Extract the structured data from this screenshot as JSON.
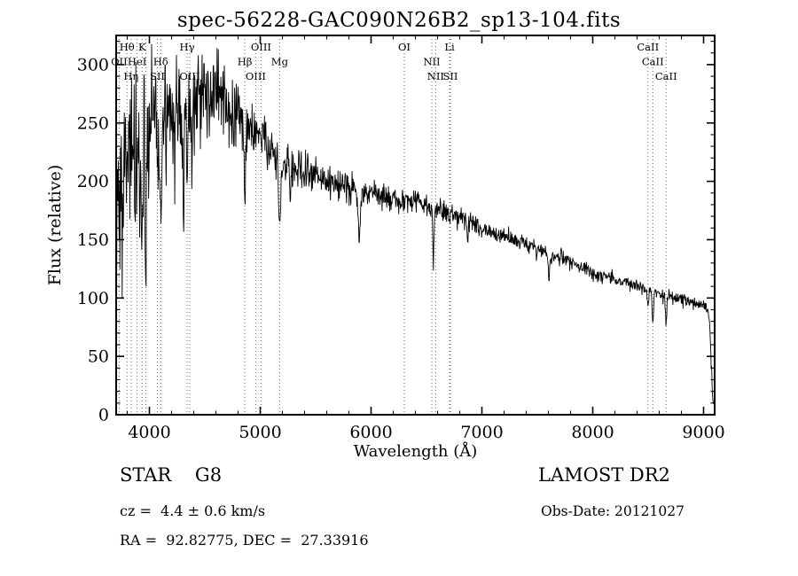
{
  "chart_data": {
    "type": "line",
    "title": "spec-56228-GAC090N26B2_sp13-104.fits",
    "xlabel": "Wavelength (Å)",
    "ylabel": "Flux (relative)",
    "xlim": [
      3700,
      9100
    ],
    "ylim": [
      0,
      325
    ],
    "xticks": [
      4000,
      5000,
      6000,
      7000,
      8000,
      9000
    ],
    "yticks": [
      0,
      50,
      100,
      150,
      200,
      250,
      300
    ],
    "x_minor_step": 200,
    "y_minor_step": 10,
    "grid": false,
    "legend": "none",
    "line_color": "#000000",
    "marker_line_color": "#666666",
    "noise_seed": 56228,
    "continuum": [
      [
        3700,
        160
      ],
      [
        3730,
        185
      ],
      [
        3760,
        200
      ],
      [
        3800,
        215
      ],
      [
        3850,
        220
      ],
      [
        3900,
        235
      ],
      [
        3950,
        230
      ],
      [
        4000,
        250
      ],
      [
        4050,
        245
      ],
      [
        4100,
        240
      ],
      [
        4150,
        258
      ],
      [
        4200,
        262
      ],
      [
        4250,
        255
      ],
      [
        4300,
        258
      ],
      [
        4350,
        250
      ],
      [
        4400,
        262
      ],
      [
        4450,
        268
      ],
      [
        4500,
        272
      ],
      [
        4550,
        276
      ],
      [
        4600,
        280
      ],
      [
        4650,
        276
      ],
      [
        4700,
        272
      ],
      [
        4750,
        264
      ],
      [
        4800,
        256
      ],
      [
        4860,
        244
      ],
      [
        4900,
        246
      ],
      [
        4950,
        242
      ],
      [
        5000,
        236
      ],
      [
        5050,
        230
      ],
      [
        5100,
        224
      ],
      [
        5150,
        218
      ],
      [
        5200,
        212
      ],
      [
        5250,
        214
      ],
      [
        5300,
        212
      ],
      [
        5350,
        210
      ],
      [
        5400,
        209
      ],
      [
        5450,
        207
      ],
      [
        5500,
        205
      ],
      [
        5600,
        201
      ],
      [
        5700,
        198
      ],
      [
        5800,
        195
      ],
      [
        5900,
        189
      ],
      [
        6000,
        191
      ],
      [
        6100,
        188
      ],
      [
        6200,
        186
      ],
      [
        6300,
        184
      ],
      [
        6400,
        182
      ],
      [
        6500,
        179
      ],
      [
        6600,
        176
      ],
      [
        6700,
        173
      ],
      [
        6800,
        169
      ],
      [
        6900,
        164
      ],
      [
        7000,
        160
      ],
      [
        7100,
        156
      ],
      [
        7200,
        152
      ],
      [
        7300,
        149
      ],
      [
        7400,
        146
      ],
      [
        7500,
        142
      ],
      [
        7600,
        138
      ],
      [
        7700,
        134
      ],
      [
        7800,
        130
      ],
      [
        7900,
        126
      ],
      [
        8000,
        122
      ],
      [
        8100,
        119
      ],
      [
        8200,
        116
      ],
      [
        8300,
        113
      ],
      [
        8400,
        110
      ],
      [
        8500,
        107
      ],
      [
        8600,
        104
      ],
      [
        8700,
        101
      ],
      [
        8800,
        99
      ],
      [
        8900,
        96
      ],
      [
        9000,
        93
      ],
      [
        9040,
        90
      ],
      [
        9060,
        70
      ],
      [
        9080,
        15
      ],
      [
        9100,
        5
      ]
    ],
    "noise_sigma": [
      [
        3700,
        40
      ],
      [
        3900,
        34
      ],
      [
        4200,
        26
      ],
      [
        4500,
        22
      ],
      [
        4800,
        16
      ],
      [
        5000,
        11
      ],
      [
        5200,
        10
      ],
      [
        5500,
        8
      ],
      [
        5800,
        7
      ],
      [
        6000,
        6
      ],
      [
        6300,
        5.5
      ],
      [
        6600,
        5
      ],
      [
        7000,
        4
      ],
      [
        7500,
        3.5
      ],
      [
        8000,
        3
      ],
      [
        8600,
        3
      ],
      [
        9100,
        3
      ]
    ],
    "absorption_lines": [
      {
        "wl": 3934,
        "depth": 95,
        "width": 7
      },
      {
        "wl": 3968,
        "depth": 85,
        "width": 7
      },
      {
        "wl": 4102,
        "depth": 65,
        "width": 6
      },
      {
        "wl": 4226,
        "depth": 50,
        "width": 5
      },
      {
        "wl": 4305,
        "depth": 55,
        "width": 7
      },
      {
        "wl": 4340,
        "depth": 55,
        "width": 5
      },
      {
        "wl": 4383,
        "depth": 45,
        "width": 5
      },
      {
        "wl": 4861,
        "depth": 55,
        "width": 6
      },
      {
        "wl": 5175,
        "depth": 60,
        "width": 8
      },
      {
        "wl": 5270,
        "depth": 40,
        "width": 6
      },
      {
        "wl": 5893,
        "depth": 45,
        "width": 7
      },
      {
        "wl": 6563,
        "depth": 45,
        "width": 6
      },
      {
        "wl": 6870,
        "depth": 14,
        "width": 6
      },
      {
        "wl": 7605,
        "depth": 18,
        "width": 8
      },
      {
        "wl": 8498,
        "depth": 18,
        "width": 5
      },
      {
        "wl": 8542,
        "depth": 26,
        "width": 6
      },
      {
        "wl": 8662,
        "depth": 24,
        "width": 6
      }
    ],
    "line_markers": [
      {
        "label": "Hθ",
        "wl": 3798,
        "row": 1
      },
      {
        "label": "K",
        "wl": 3934,
        "row": 1
      },
      {
        "label": "",
        "wl": 3968,
        "row": 1
      },
      {
        "label": "Hγ",
        "wl": 4340,
        "row": 1
      },
      {
        "label": "OIII",
        "wl": 5007,
        "row": 1
      },
      {
        "label": "OI",
        "wl": 6300,
        "row": 1
      },
      {
        "label": "Li",
        "wl": 6708,
        "row": 1
      },
      {
        "label": "CaII",
        "wl": 8498,
        "row": 1
      },
      {
        "label": "OII",
        "wl": 3727,
        "row": 2
      },
      {
        "label": "HeI",
        "wl": 3889,
        "row": 2
      },
      {
        "label": "Hδ",
        "wl": 4102,
        "row": 2
      },
      {
        "label": "Hβ",
        "wl": 4861,
        "row": 2
      },
      {
        "label": "Mg",
        "wl": 5175,
        "row": 2
      },
      {
        "label": "NII",
        "wl": 6548,
        "row": 2
      },
      {
        "label": "CaII",
        "wl": 8542,
        "row": 2
      },
      {
        "label": "Hη",
        "wl": 3835,
        "row": 3
      },
      {
        "label": "SII",
        "wl": 4072,
        "row": 3
      },
      {
        "label": "OIII",
        "wl": 4363,
        "row": 3
      },
      {
        "label": "OIII",
        "wl": 4959,
        "row": 3
      },
      {
        "label": "NII",
        "wl": 6583,
        "row": 3
      },
      {
        "label": "SII",
        "wl": 6716,
        "row": 3
      },
      {
        "label": "CaII",
        "wl": 8662,
        "row": 3
      }
    ]
  },
  "annotations": {
    "class_label": "STAR    G8",
    "survey": "LAMOST DR2",
    "cz": "cz =  4.4 ± 0.6 km/s",
    "obs_date": "Obs-Date: 20121027",
    "ra_dec": "RA =  92.82775, DEC =  27.33916"
  }
}
